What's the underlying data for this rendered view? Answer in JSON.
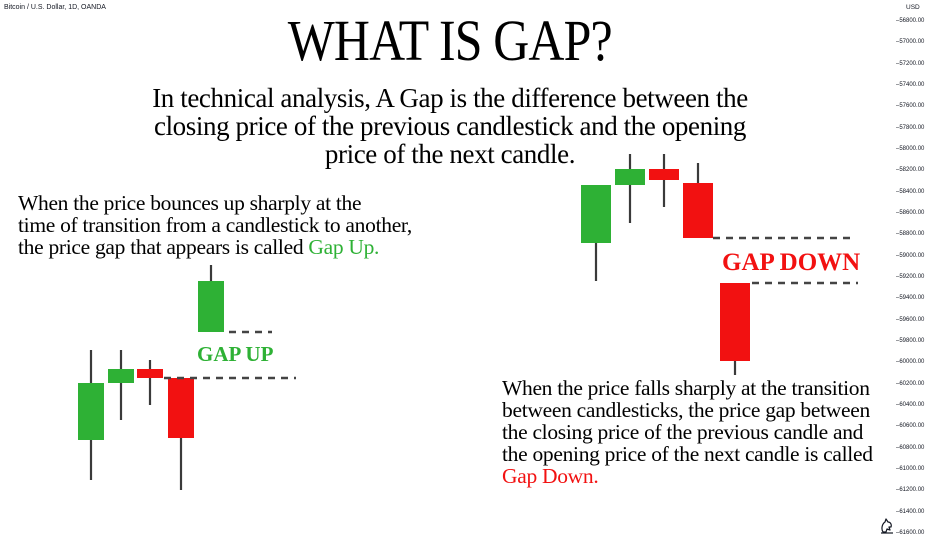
{
  "symbol": "Bitcoin / U.S. Dollar, 1D, OANDA",
  "axis": {
    "unit": "USD",
    "ticks": [
      "56800.00",
      "57000.00",
      "57200.00",
      "57400.00",
      "57600.00",
      "57800.00",
      "58000.00",
      "58200.00",
      "58400.00",
      "58600.00",
      "58800.00",
      "59000.00",
      "59200.00",
      "59400.00",
      "59600.00",
      "59800.00",
      "60000.00",
      "60200.00",
      "60400.00",
      "60600.00",
      "60800.00",
      "61000.00",
      "61200.00",
      "61400.00",
      "61600.00"
    ]
  },
  "title": "WHAT IS GAP?",
  "intro": {
    "line1": "In technical analysis, A Gap is the difference between the",
    "line2": "closing price of the previous candlestick and the opening",
    "line3": "price of the next candle."
  },
  "gap_up_text": {
    "line1": "When the price bounces up sharply at the",
    "line2": "time of transition from a candlestick to another,",
    "line3_prefix": "the price gap that appears is called ",
    "term": "Gap Up."
  },
  "gap_down_text": {
    "line1": "When the price falls sharply at the transition",
    "line2": "between candlesticks, the price gap between",
    "line3": "the closing price of the previous candle and",
    "line4": "the opening price of the next candle is called",
    "term": "Gap Down."
  },
  "colors": {
    "bull": "#2eb135",
    "bear": "#f21111",
    "dash": "#444444",
    "text": "#000000"
  },
  "logo_icon": "tradingview-logo-icon",
  "chart_data": [
    {
      "type": "candlestick",
      "name": "gap up example",
      "label": "GAP UP",
      "candles": [
        {
          "dir": "up",
          "open": 0,
          "close": 57,
          "high": 90,
          "low": -40
        },
        {
          "dir": "up",
          "open": 57,
          "close": 71,
          "high": 90,
          "low": 20
        },
        {
          "dir": "down",
          "open": 71,
          "close": 62,
          "high": 80,
          "low": 35
        },
        {
          "dir": "down",
          "open": 62,
          "close": 2,
          "high": 62,
          "low": -50
        },
        {
          "dir": "up",
          "open": 108,
          "close": 159,
          "high": 175,
          "low": 108
        }
      ],
      "gap_lines": [
        62,
        108
      ]
    },
    {
      "type": "candlestick",
      "name": "gap down example",
      "label": "GAP DOWN",
      "candles": [
        {
          "dir": "up",
          "open": 80,
          "close": 138,
          "high": 138,
          "low": 42
        },
        {
          "dir": "up",
          "open": 138,
          "close": 154,
          "high": 169,
          "low": 100
        },
        {
          "dir": "down",
          "open": 154,
          "close": 143,
          "high": 169,
          "low": 116
        },
        {
          "dir": "down",
          "open": 140,
          "close": 85,
          "high": 160,
          "low": 85
        },
        {
          "dir": "down",
          "open": 40,
          "close": -38,
          "high": 40,
          "low": -52
        }
      ],
      "gap_lines": [
        85,
        40
      ]
    }
  ]
}
